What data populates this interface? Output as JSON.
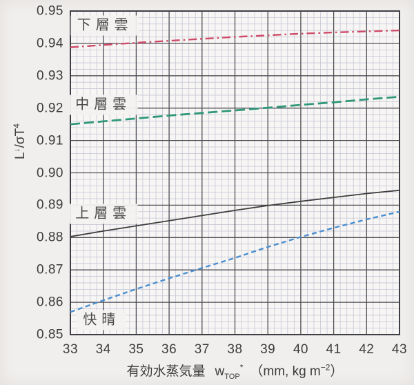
{
  "figure": {
    "background": "#f1efed",
    "plot_background": "#f7f6f4",
    "grid_major_color": "#4d4d55",
    "grid_minor_color": "#c6c5d5",
    "border_color": "#3e3e45",
    "text_color": "#3c3c3c"
  },
  "x_axis": {
    "title_prefix": "有効水蒸気量",
    "symbol": "w",
    "symbol_sub": "TOP",
    "symbol_sup": "*",
    "units_open": "（mm, kg m",
    "units_exponent": "−2",
    "units_close": "）"
  },
  "y_axis": {
    "base1": "L",
    "sup1": "↓",
    "base2": "/σT",
    "sup2": "4"
  },
  "chart_data": {
    "type": "line",
    "title": "",
    "xlabel": "有効水蒸気量 wTOP* （mm, kg m−2）",
    "ylabel": "L↓/σT4",
    "xlim": [
      33,
      43
    ],
    "ylim": [
      0.85,
      0.95
    ],
    "x_ticks": [
      33,
      34,
      35,
      36,
      37,
      38,
      39,
      40,
      41,
      42,
      43
    ],
    "y_ticks": [
      0.85,
      0.86,
      0.87,
      0.88,
      0.89,
      0.9,
      0.91,
      0.92,
      0.93,
      0.94,
      0.95
    ],
    "grid": {
      "major": true,
      "minor": true,
      "minor_divisions_per_major": 5
    },
    "legend_position": "inline-annotations",
    "x": [
      33,
      34,
      35,
      36,
      37,
      38,
      39,
      40,
      41,
      42,
      43
    ],
    "series": [
      {
        "name": "下層雲",
        "style": "dash-dot",
        "color": "#cf4a68",
        "values": [
          0.9388,
          0.9395,
          0.9402,
          0.9408,
          0.9414,
          0.942,
          0.9425,
          0.943,
          0.9434,
          0.9437,
          0.944
        ],
        "label_pos": {
          "x": 34.05,
          "y": 0.9455
        }
      },
      {
        "name": "中層雲",
        "style": "long-dash",
        "color": "#2f9878",
        "values": [
          0.915,
          0.9159,
          0.9168,
          0.9177,
          0.9185,
          0.9193,
          0.9201,
          0.921,
          0.9218,
          0.9227,
          0.9235
        ],
        "label_pos": {
          "x": 34.0,
          "y": 0.921
        }
      },
      {
        "name": "上層雲",
        "style": "solid",
        "color": "#3d3d3d",
        "values": [
          0.8803,
          0.882,
          0.8836,
          0.8852,
          0.8868,
          0.8884,
          0.8899,
          0.8912,
          0.8924,
          0.8936,
          0.8946
        ],
        "label_pos": {
          "x": 34.0,
          "y": 0.8873
        }
      },
      {
        "name": "快晴",
        "style": "short-dash",
        "color": "#4b8ed0",
        "values": [
          0.857,
          0.8606,
          0.8641,
          0.8674,
          0.8706,
          0.8737,
          0.8771,
          0.8802,
          0.883,
          0.8856,
          0.888
        ],
        "label_pos": {
          "x": 33.95,
          "y": 0.8545
        }
      }
    ]
  }
}
